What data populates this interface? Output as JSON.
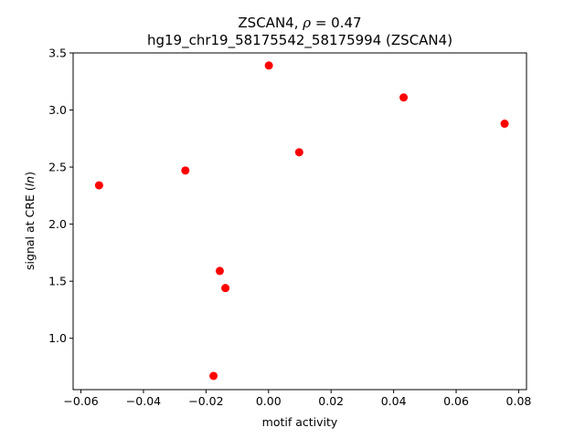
{
  "chart_data": {
    "type": "scatter",
    "title_line1_prefix": "ZSCAN4, ",
    "title_line1_rho": "ρ",
    "title_line1_suffix": " = 0.47",
    "title_line2": "hg19_chr19_58175542_58175994 (ZSCAN4)",
    "xlabel": "motif activity",
    "ylabel_prefix": "signal at CRE (",
    "ylabel_italic": "ln",
    "ylabel_suffix": ")",
    "xlim": [
      -0.0625,
      0.0825
    ],
    "ylim": [
      0.55,
      3.5
    ],
    "xticks": [
      -0.06,
      -0.04,
      -0.02,
      0.0,
      0.02,
      0.04,
      0.06,
      0.08
    ],
    "xtick_labels": [
      "−0.06",
      "−0.04",
      "−0.02",
      "0.00",
      "0.02",
      "0.04",
      "0.06",
      "0.08"
    ],
    "yticks": [
      1.0,
      1.5,
      2.0,
      2.5,
      3.0,
      3.5
    ],
    "ytick_labels": [
      "1.0",
      "1.5",
      "2.0",
      "2.5",
      "3.0",
      "3.5"
    ],
    "marker_color": "#ff0000",
    "grid": false,
    "points": [
      {
        "x": -0.0542,
        "y": 2.34
      },
      {
        "x": -0.0266,
        "y": 2.47
      },
      {
        "x": -0.0176,
        "y": 0.67
      },
      {
        "x": -0.0156,
        "y": 1.59
      },
      {
        "x": -0.0138,
        "y": 1.44
      },
      {
        "x": 0.0001,
        "y": 3.39
      },
      {
        "x": 0.0098,
        "y": 2.63
      },
      {
        "x": 0.0432,
        "y": 3.11
      },
      {
        "x": 0.0755,
        "y": 2.88
      }
    ]
  }
}
